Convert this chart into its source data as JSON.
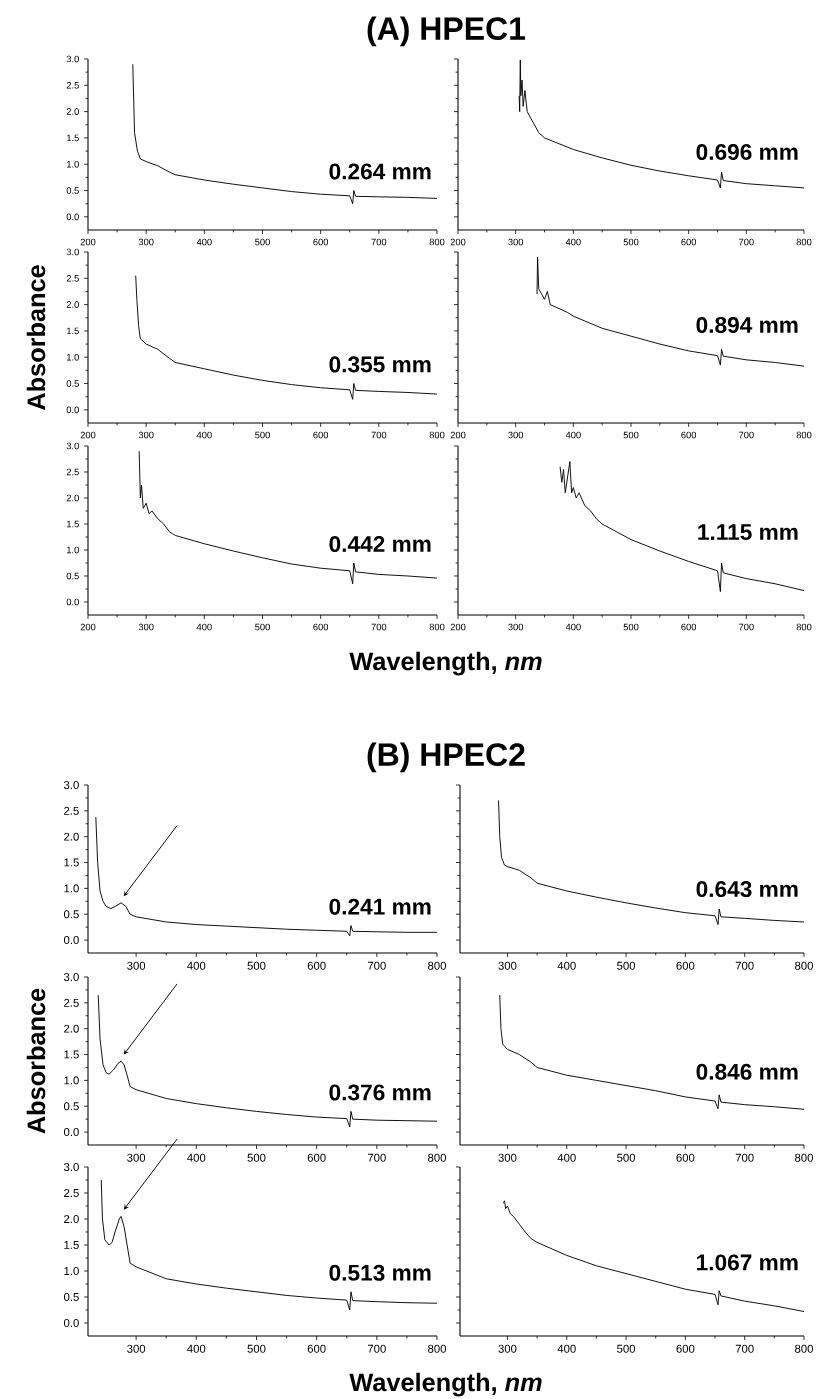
{
  "chart_data": [
    {
      "type": "line",
      "title": "(A) HPEC1",
      "color": "#000000",
      "xlim": [
        200,
        800
      ],
      "ylim": [
        -0.25,
        3.0
      ],
      "xticks": [
        200,
        300,
        400,
        500,
        600,
        700,
        800
      ],
      "yticks": [
        {
          "value": 0,
          "label": "0.0"
        },
        {
          "value": 0.5,
          "label": "0.5"
        },
        {
          "value": 1,
          "label": "1.0"
        },
        {
          "value": 1.5,
          "label": "1.5"
        },
        {
          "value": 2,
          "label": "2.0"
        },
        {
          "value": 2.5,
          "label": "2.5"
        },
        {
          "value": 3,
          "label": "3.0"
        }
      ],
      "annotations": [
        "0.264 mm"
      ],
      "x": [
        277,
        280,
        285,
        290,
        300,
        320,
        340,
        350,
        400,
        450,
        500,
        550,
        600,
        650,
        655,
        657,
        660,
        700,
        750,
        800
      ],
      "values": [
        2.9,
        1.6,
        1.25,
        1.1,
        1.05,
        0.97,
        0.85,
        0.8,
        0.7,
        0.62,
        0.55,
        0.48,
        0.43,
        0.4,
        0.25,
        0.5,
        0.39,
        0.38,
        0.37,
        0.35
      ]
    },
    {
      "type": "line",
      "color": "#000000",
      "xlim": [
        200,
        800
      ],
      "ylim": [
        -0.25,
        3.0
      ],
      "xticks": [
        200,
        300,
        400,
        500,
        600,
        700,
        800
      ],
      "yticks": [
        {
          "value": 0,
          "label": null
        },
        {
          "value": 0.5,
          "label": null
        },
        {
          "value": 1,
          "label": null
        },
        {
          "value": 1.5,
          "label": null
        },
        {
          "value": 2,
          "label": null
        },
        {
          "value": 2.5,
          "label": null
        },
        {
          "value": 3,
          "label": null
        }
      ],
      "tick_labels": "x",
      "annotations": [
        "0.696 mm"
      ],
      "x": [
        306,
        307,
        308,
        309,
        311,
        313,
        316,
        320,
        330,
        340,
        350,
        400,
        450,
        500,
        550,
        600,
        650,
        655,
        657,
        660,
        700,
        750,
        800
      ],
      "values": [
        2.3,
        2.0,
        2.98,
        2.3,
        2.6,
        2.1,
        2.4,
        2.0,
        1.8,
        1.6,
        1.5,
        1.28,
        1.12,
        0.98,
        0.87,
        0.78,
        0.7,
        0.55,
        0.85,
        0.69,
        0.63,
        0.59,
        0.55
      ]
    },
    {
      "type": "line",
      "ylabel": "Absorbance",
      "color": "#000000",
      "xlim": [
        200,
        800
      ],
      "ylim": [
        -0.25,
        3.0
      ],
      "xticks": [
        200,
        300,
        400,
        500,
        600,
        700,
        800
      ],
      "yticks": [
        {
          "value": 0,
          "label": "0.0"
        },
        {
          "value": 0.5,
          "label": "0.5"
        },
        {
          "value": 1,
          "label": "1.0"
        },
        {
          "value": 1.5,
          "label": "1.5"
        },
        {
          "value": 2,
          "label": "2.0"
        },
        {
          "value": 2.5,
          "label": "2.5"
        },
        {
          "value": 3,
          "label": "3.0"
        }
      ],
      "annotations": [
        "0.355 mm"
      ],
      "x": [
        282,
        284,
        287,
        290,
        300,
        320,
        340,
        350,
        400,
        450,
        500,
        550,
        600,
        650,
        655,
        657,
        660,
        700,
        750,
        800
      ],
      "values": [
        2.55,
        2.1,
        1.6,
        1.35,
        1.25,
        1.15,
        0.98,
        0.9,
        0.78,
        0.66,
        0.56,
        0.48,
        0.42,
        0.38,
        0.2,
        0.5,
        0.37,
        0.35,
        0.33,
        0.3
      ]
    },
    {
      "type": "line",
      "color": "#000000",
      "xlim": [
        200,
        800
      ],
      "ylim": [
        -0.25,
        3.0
      ],
      "xticks": [
        200,
        300,
        400,
        500,
        600,
        700,
        800
      ],
      "yticks": [
        {
          "value": 0,
          "label": null
        },
        {
          "value": 0.5,
          "label": null
        },
        {
          "value": 1,
          "label": null
        },
        {
          "value": 1.5,
          "label": null
        },
        {
          "value": 2,
          "label": null
        },
        {
          "value": 2.5,
          "label": null
        },
        {
          "value": 3,
          "label": null
        }
      ],
      "tick_labels": "x",
      "annotations": [
        "0.894 mm"
      ],
      "x": [
        337,
        338,
        340,
        345,
        350,
        355,
        360,
        370,
        380,
        390,
        400,
        450,
        500,
        550,
        600,
        650,
        655,
        657,
        660,
        700,
        750,
        800
      ],
      "values": [
        2.2,
        2.9,
        2.3,
        2.2,
        2.1,
        2.25,
        2.0,
        1.95,
        1.9,
        1.85,
        1.78,
        1.55,
        1.4,
        1.25,
        1.12,
        1.03,
        0.85,
        1.15,
        1.02,
        0.95,
        0.9,
        0.83
      ]
    },
    {
      "type": "line",
      "xlabel": "Wavelength, *nm*",
      "color": "#000000",
      "xlim": [
        200,
        800
      ],
      "ylim": [
        -0.25,
        3.0
      ],
      "xticks": [
        200,
        300,
        400,
        500,
        600,
        700,
        800
      ],
      "yticks": [
        {
          "value": 0,
          "label": "0.0"
        },
        {
          "value": 0.5,
          "label": "0.5"
        },
        {
          "value": 1,
          "label": "1.0"
        },
        {
          "value": 1.5,
          "label": "1.5"
        },
        {
          "value": 2,
          "label": "2.0"
        },
        {
          "value": 2.5,
          "label": "2.5"
        },
        {
          "value": 3,
          "label": "3.0"
        }
      ],
      "annotations": [
        "0.442 mm"
      ],
      "x": [
        288,
        290,
        292,
        295,
        300,
        305,
        310,
        320,
        330,
        340,
        350,
        400,
        450,
        500,
        550,
        600,
        650,
        655,
        657,
        660,
        700,
        750,
        800
      ],
      "values": [
        2.9,
        2.0,
        2.25,
        1.8,
        1.9,
        1.7,
        1.75,
        1.6,
        1.5,
        1.35,
        1.28,
        1.12,
        0.98,
        0.85,
        0.73,
        0.65,
        0.6,
        0.35,
        0.75,
        0.58,
        0.53,
        0.5,
        0.46
      ]
    },
    {
      "type": "line",
      "color": "#000000",
      "xlim": [
        200,
        800
      ],
      "ylim": [
        -0.25,
        3.0
      ],
      "xticks": [
        200,
        300,
        400,
        500,
        600,
        700,
        800
      ],
      "yticks": [
        {
          "value": 0,
          "label": null
        },
        {
          "value": 0.5,
          "label": null
        },
        {
          "value": 1,
          "label": null
        },
        {
          "value": 1.5,
          "label": null
        },
        {
          "value": 2,
          "label": null
        },
        {
          "value": 2.5,
          "label": null
        },
        {
          "value": 3,
          "label": null
        }
      ],
      "tick_labels": "x",
      "annotations": [
        "1.115 mm"
      ],
      "x": [
        377,
        380,
        383,
        386,
        390,
        394,
        397,
        400,
        405,
        410,
        420,
        430,
        440,
        450,
        475,
        500,
        550,
        600,
        650,
        655,
        657,
        660,
        700,
        750,
        800
      ],
      "values": [
        2.6,
        2.3,
        2.55,
        2.1,
        2.4,
        2.7,
        2.1,
        2.2,
        2.0,
        2.1,
        1.85,
        1.75,
        1.6,
        1.5,
        1.35,
        1.2,
        0.98,
        0.78,
        0.6,
        0.2,
        0.75,
        0.56,
        0.45,
        0.35,
        0.22
      ]
    },
    {
      "type": "line",
      "title": "(B) HPEC2",
      "color": "#000000",
      "xlim": [
        220,
        800
      ],
      "ylim": [
        -0.25,
        3.0
      ],
      "xticks": [
        300,
        400,
        500,
        600,
        700,
        800
      ],
      "yticks": [
        {
          "value": 0,
          "label": "0.0"
        },
        {
          "value": 0.5,
          "label": "0.5"
        },
        {
          "value": 1,
          "label": "1.0"
        },
        {
          "value": 1.5,
          "label": "1.5"
        },
        {
          "value": 2,
          "label": "2.0"
        },
        {
          "value": 2.5,
          "label": "2.5"
        },
        {
          "value": 3,
          "label": "3.0"
        }
      ],
      "annotations": [
        "0.241 mm"
      ],
      "x": [
        233,
        236,
        240,
        245,
        250,
        258,
        265,
        275,
        283,
        290,
        300,
        350,
        400,
        450,
        500,
        550,
        600,
        650,
        655,
        657,
        660,
        700,
        750,
        800
      ],
      "values": [
        2.38,
        1.5,
        0.95,
        0.75,
        0.65,
        0.61,
        0.65,
        0.72,
        0.65,
        0.5,
        0.45,
        0.35,
        0.3,
        0.27,
        0.24,
        0.21,
        0.19,
        0.17,
        0.08,
        0.28,
        0.17,
        0.16,
        0.15,
        0.15
      ]
    },
    {
      "type": "line",
      "color": "#000000",
      "xlim": [
        220,
        800
      ],
      "ylim": [
        -0.25,
        3.0
      ],
      "xticks": [
        300,
        400,
        500,
        600,
        700,
        800
      ],
      "yticks": [
        {
          "value": 0,
          "label": null
        },
        {
          "value": 0.5,
          "label": null
        },
        {
          "value": 1,
          "label": null
        },
        {
          "value": 1.5,
          "label": null
        },
        {
          "value": 2,
          "label": null
        },
        {
          "value": 2.5,
          "label": null
        },
        {
          "value": 3,
          "label": null
        }
      ],
      "tick_labels": "x",
      "annotations": [
        "0.643 mm"
      ],
      "x": [
        285,
        287,
        290,
        295,
        300,
        320,
        340,
        350,
        400,
        450,
        500,
        550,
        600,
        650,
        655,
        657,
        660,
        700,
        750,
        800
      ],
      "values": [
        2.7,
        2.0,
        1.6,
        1.45,
        1.42,
        1.35,
        1.2,
        1.1,
        0.95,
        0.83,
        0.72,
        0.62,
        0.53,
        0.47,
        0.3,
        0.6,
        0.45,
        0.42,
        0.38,
        0.35
      ]
    },
    {
      "type": "line",
      "ylabel": "Absorbance",
      "color": "#000000",
      "xlim": [
        220,
        800
      ],
      "ylim": [
        -0.25,
        3.0
      ],
      "xticks": [
        300,
        400,
        500,
        600,
        700,
        800
      ],
      "yticks": [
        {
          "value": 0,
          "label": "0.0"
        },
        {
          "value": 0.5,
          "label": "0.5"
        },
        {
          "value": 1,
          "label": "1.0"
        },
        {
          "value": 1.5,
          "label": "1.5"
        },
        {
          "value": 2,
          "label": "2.0"
        },
        {
          "value": 2.5,
          "label": "2.5"
        },
        {
          "value": 3,
          "label": "3.0"
        }
      ],
      "annotations": [
        "0.376 mm"
      ],
      "x": [
        237,
        240,
        245,
        250,
        255,
        262,
        270,
        275,
        280,
        285,
        290,
        300,
        350,
        400,
        450,
        500,
        550,
        600,
        650,
        655,
        657,
        660,
        700,
        750,
        800
      ],
      "values": [
        2.65,
        1.8,
        1.3,
        1.15,
        1.12,
        1.2,
        1.33,
        1.37,
        1.3,
        1.1,
        0.88,
        0.82,
        0.65,
        0.55,
        0.47,
        0.4,
        0.34,
        0.29,
        0.26,
        0.1,
        0.4,
        0.25,
        0.23,
        0.22,
        0.21
      ]
    },
    {
      "type": "line",
      "color": "#000000",
      "xlim": [
        220,
        800
      ],
      "ylim": [
        -0.25,
        3.0
      ],
      "xticks": [
        300,
        400,
        500,
        600,
        700,
        800
      ],
      "yticks": [
        {
          "value": 0,
          "label": null
        },
        {
          "value": 0.5,
          "label": null
        },
        {
          "value": 1,
          "label": null
        },
        {
          "value": 1.5,
          "label": null
        },
        {
          "value": 2,
          "label": null
        },
        {
          "value": 2.5,
          "label": null
        },
        {
          "value": 3,
          "label": null
        }
      ],
      "tick_labels": "x",
      "annotations": [
        "0.846 mm"
      ],
      "x": [
        287,
        289,
        292,
        300,
        320,
        340,
        350,
        400,
        450,
        500,
        550,
        600,
        650,
        655,
        657,
        660,
        700,
        750,
        800
      ],
      "values": [
        2.65,
        2.0,
        1.7,
        1.6,
        1.5,
        1.35,
        1.25,
        1.1,
        1.0,
        0.9,
        0.8,
        0.68,
        0.6,
        0.45,
        0.72,
        0.58,
        0.53,
        0.49,
        0.44
      ]
    },
    {
      "type": "line",
      "xlabel": "Wavelength, *nm*",
      "color": "#000000",
      "xlim": [
        220,
        800
      ],
      "ylim": [
        -0.25,
        3.0
      ],
      "xticks": [
        300,
        400,
        500,
        600,
        700,
        800
      ],
      "yticks": [
        {
          "value": 0,
          "label": "0.0"
        },
        {
          "value": 0.5,
          "label": "0.5"
        },
        {
          "value": 1,
          "label": "1.0"
        },
        {
          "value": 1.5,
          "label": "1.5"
        },
        {
          "value": 2,
          "label": "2.0"
        },
        {
          "value": 2.5,
          "label": "2.5"
        },
        {
          "value": 3,
          "label": "3.0"
        }
      ],
      "annotations": [
        "0.513 mm"
      ],
      "x": [
        242,
        244,
        248,
        255,
        260,
        265,
        272,
        275,
        280,
        285,
        290,
        300,
        350,
        400,
        450,
        500,
        550,
        600,
        650,
        655,
        657,
        660,
        700,
        750,
        800
      ],
      "values": [
        2.75,
        2.0,
        1.6,
        1.5,
        1.55,
        1.75,
        2.0,
        2.05,
        1.85,
        1.5,
        1.15,
        1.08,
        0.85,
        0.75,
        0.67,
        0.6,
        0.53,
        0.48,
        0.44,
        0.25,
        0.6,
        0.43,
        0.41,
        0.39,
        0.38
      ]
    },
    {
      "type": "line",
      "color": "#000000",
      "xlim": [
        220,
        800
      ],
      "ylim": [
        -0.25,
        3.0
      ],
      "xticks": [
        300,
        400,
        500,
        600,
        700,
        800
      ],
      "yticks": [
        {
          "value": 0,
          "label": null
        },
        {
          "value": 0.5,
          "label": null
        },
        {
          "value": 1,
          "label": null
        },
        {
          "value": 1.5,
          "label": null
        },
        {
          "value": 2,
          "label": null
        },
        {
          "value": 2.5,
          "label": null
        },
        {
          "value": 3,
          "label": null
        }
      ],
      "tick_labels": "x",
      "annotations": [
        "1.067 mm"
      ],
      "x": [
        293,
        295,
        297,
        300,
        305,
        310,
        320,
        330,
        340,
        350,
        400,
        450,
        500,
        550,
        600,
        650,
        655,
        657,
        660,
        700,
        750,
        800
      ],
      "values": [
        2.3,
        2.35,
        2.2,
        2.25,
        2.1,
        2.05,
        1.9,
        1.75,
        1.62,
        1.55,
        1.3,
        1.1,
        0.95,
        0.8,
        0.65,
        0.55,
        0.35,
        0.62,
        0.52,
        0.42,
        0.33,
        0.22
      ]
    }
  ]
}
